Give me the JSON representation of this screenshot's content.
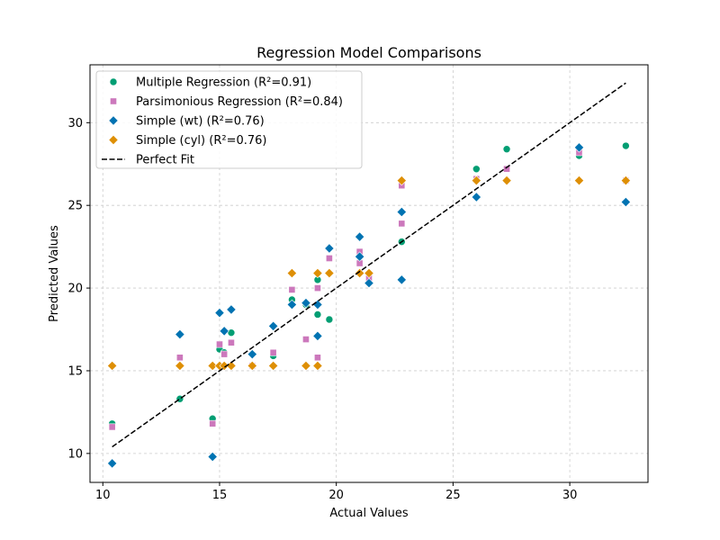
{
  "chart_data": {
    "type": "scatter",
    "title": "Regression Model Comparisons",
    "xlabel": "Actual Values",
    "ylabel": "Predicted Values",
    "xlim": [
      9.45,
      33.35
    ],
    "ylim": [
      8.25,
      33.5
    ],
    "xticks": [
      10,
      15,
      20,
      25,
      30
    ],
    "yticks": [
      10,
      15,
      20,
      25,
      30
    ],
    "grid": true,
    "legend_position": "upper left",
    "series": [
      {
        "name": "Multiple Regression (R²=0.91)",
        "marker": "circle",
        "color": "#029e73",
        "points": [
          [
            10.4,
            11.8
          ],
          [
            13.3,
            13.3
          ],
          [
            14.7,
            12.1
          ],
          [
            15.0,
            16.3
          ],
          [
            15.2,
            16.1
          ],
          [
            15.5,
            17.3
          ],
          [
            16.4,
            15.3
          ],
          [
            17.3,
            15.9
          ],
          [
            18.1,
            19.3
          ],
          [
            18.7,
            19.0
          ],
          [
            19.2,
            20.5
          ],
          [
            19.2,
            18.4
          ],
          [
            19.7,
            18.1
          ],
          [
            21.0,
            21.6
          ],
          [
            21.0,
            21.9
          ],
          [
            21.4,
            20.8
          ],
          [
            22.8,
            22.8
          ],
          [
            26.0,
            27.2
          ],
          [
            27.3,
            28.4
          ],
          [
            30.4,
            28.0
          ],
          [
            32.4,
            28.6
          ]
        ]
      },
      {
        "name": "Parsimonious Regression (R²=0.84)",
        "marker": "square",
        "color": "#cc78bc",
        "points": [
          [
            10.4,
            11.6
          ],
          [
            13.3,
            15.8
          ],
          [
            14.7,
            11.8
          ],
          [
            15.0,
            16.6
          ],
          [
            15.2,
            16.0
          ],
          [
            15.5,
            16.7
          ],
          [
            16.4,
            15.3
          ],
          [
            17.3,
            16.1
          ],
          [
            18.1,
            19.9
          ],
          [
            18.7,
            16.9
          ],
          [
            19.2,
            15.8
          ],
          [
            19.2,
            20.0
          ],
          [
            19.7,
            21.8
          ],
          [
            21.0,
            22.2
          ],
          [
            21.0,
            21.5
          ],
          [
            21.4,
            20.6
          ],
          [
            22.8,
            26.2
          ],
          [
            22.8,
            23.9
          ],
          [
            26.0,
            26.6
          ],
          [
            27.3,
            27.2
          ],
          [
            30.4,
            28.2
          ],
          [
            32.4,
            26.5
          ]
        ]
      },
      {
        "name": "Simple (wt) (R²=0.76)",
        "marker": "diamond",
        "color": "#0173b2",
        "points": [
          [
            10.4,
            9.4
          ],
          [
            13.3,
            17.2
          ],
          [
            14.7,
            9.8
          ],
          [
            15.0,
            18.5
          ],
          [
            15.2,
            17.4
          ],
          [
            15.5,
            18.7
          ],
          [
            16.4,
            16.0
          ],
          [
            17.3,
            17.7
          ],
          [
            18.1,
            19.0
          ],
          [
            18.7,
            19.1
          ],
          [
            19.2,
            19.0
          ],
          [
            19.2,
            17.1
          ],
          [
            19.7,
            22.4
          ],
          [
            21.0,
            23.1
          ],
          [
            21.0,
            21.9
          ],
          [
            21.4,
            20.3
          ],
          [
            22.8,
            24.6
          ],
          [
            22.8,
            20.5
          ],
          [
            26.0,
            25.5
          ],
          [
            30.4,
            28.5
          ],
          [
            32.4,
            25.2
          ]
        ]
      },
      {
        "name": "Simple (cyl) (R²=0.76)",
        "marker": "diamond",
        "color": "#de8f05",
        "points": [
          [
            10.4,
            15.3
          ],
          [
            13.3,
            15.3
          ],
          [
            14.7,
            15.3
          ],
          [
            15.0,
            15.3
          ],
          [
            15.2,
            15.3
          ],
          [
            15.5,
            15.3
          ],
          [
            16.4,
            15.3
          ],
          [
            17.3,
            15.3
          ],
          [
            18.1,
            20.9
          ],
          [
            18.7,
            15.3
          ],
          [
            19.2,
            15.3
          ],
          [
            19.2,
            20.9
          ],
          [
            19.7,
            20.9
          ],
          [
            21.0,
            20.9
          ],
          [
            21.4,
            20.9
          ],
          [
            22.8,
            26.5
          ],
          [
            26.0,
            26.5
          ],
          [
            27.3,
            26.5
          ],
          [
            30.4,
            26.5
          ],
          [
            32.4,
            26.5
          ]
        ]
      },
      {
        "name": "Perfect Fit",
        "type": "line",
        "style": "dashed",
        "color": "#000000",
        "x": [
          10.4,
          32.4
        ],
        "y": [
          10.4,
          32.4
        ]
      }
    ]
  }
}
